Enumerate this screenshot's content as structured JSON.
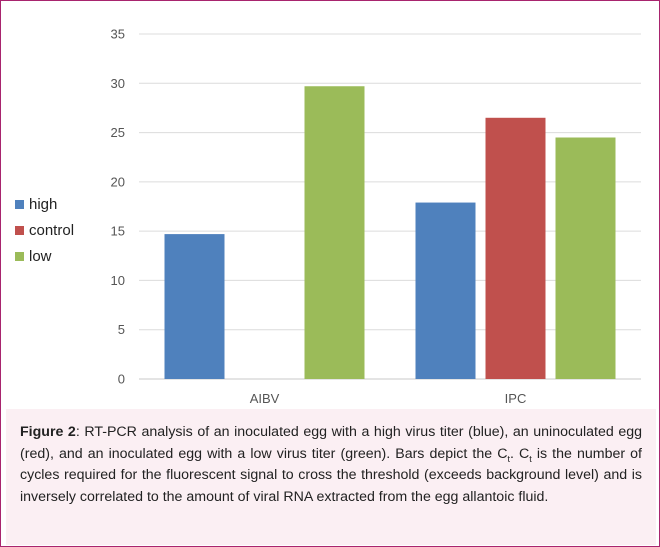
{
  "chart_data": {
    "type": "bar",
    "categories": [
      "AIBV",
      "IPC"
    ],
    "series": [
      {
        "name": "high",
        "color": "#4f81bd",
        "values": [
          14.7,
          17.9
        ]
      },
      {
        "name": "control",
        "color": "#c0504d",
        "values": [
          null,
          26.5
        ]
      },
      {
        "name": "low",
        "color": "#9bbb59",
        "values": [
          29.7,
          24.5
        ]
      }
    ],
    "ylim": [
      0,
      35
    ],
    "yticks": [
      "0",
      "5",
      "10",
      "15",
      "20",
      "25",
      "30",
      "35"
    ],
    "grid": true,
    "legend_position": "left"
  },
  "caption": {
    "label": "Figure 2",
    "part1": ": RT-PCR analysis of an inoculated egg with a high virus titer (blue), an uninoculated egg (red), and an inoculated egg with a low virus titer (green). Bars depict the C",
    "sub1": "t",
    "part2": ". C",
    "sub2": "t",
    "part3": " is the number of cycles required for the fluorescent signal to cross the threshold (exceeds background level) and is inversely correlated to the amount of viral RNA extracted from the egg allantoic fluid."
  }
}
